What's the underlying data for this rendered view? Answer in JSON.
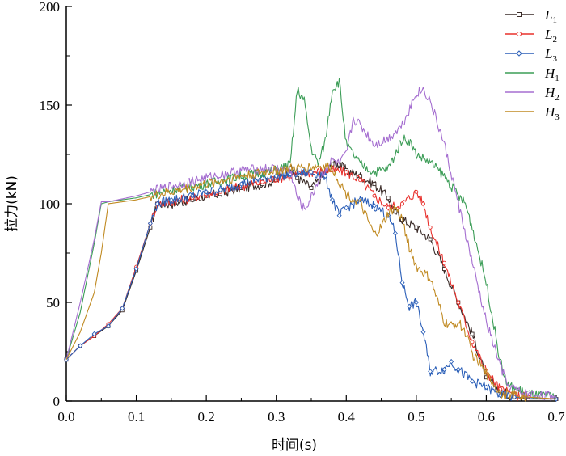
{
  "chart_data": {
    "type": "line",
    "title": "",
    "xlabel": "时间(s)",
    "ylabel": "拉力(kN)",
    "xlim": [
      0.0,
      0.7
    ],
    "ylim": [
      0,
      200
    ],
    "x_ticks": [
      0.0,
      0.1,
      0.2,
      0.3,
      0.4,
      0.5,
      0.6,
      0.7
    ],
    "y_ticks": [
      0,
      50,
      100,
      150,
      200
    ],
    "x_tick_labels": [
      "0.0",
      "0.1",
      "0.2",
      "0.3",
      "0.4",
      "0.5",
      "0.6",
      "0.7"
    ],
    "y_tick_labels": [
      "0",
      "50",
      "100",
      "150",
      "200"
    ],
    "grid": false,
    "legend_position": "top-right",
    "series": [
      {
        "name": "L1",
        "label_main": "L",
        "label_sub": "1",
        "color": "#3a2b28",
        "marker": "square",
        "points": [
          [
            0.0,
            21
          ],
          [
            0.02,
            28
          ],
          [
            0.04,
            33
          ],
          [
            0.06,
            38
          ],
          [
            0.08,
            46
          ],
          [
            0.1,
            66
          ],
          [
            0.12,
            88
          ],
          [
            0.13,
            100
          ],
          [
            0.15,
            100
          ],
          [
            0.18,
            102
          ],
          [
            0.2,
            104
          ],
          [
            0.22,
            105
          ],
          [
            0.25,
            108
          ],
          [
            0.28,
            110
          ],
          [
            0.3,
            112
          ],
          [
            0.32,
            118
          ],
          [
            0.33,
            113
          ],
          [
            0.35,
            108
          ],
          [
            0.37,
            115
          ],
          [
            0.38,
            120
          ],
          [
            0.39,
            120
          ],
          [
            0.4,
            117
          ],
          [
            0.42,
            114
          ],
          [
            0.44,
            110
          ],
          [
            0.46,
            103
          ],
          [
            0.47,
            96
          ],
          [
            0.48,
            92
          ],
          [
            0.5,
            88
          ],
          [
            0.52,
            82
          ],
          [
            0.54,
            67
          ],
          [
            0.56,
            50
          ],
          [
            0.58,
            34
          ],
          [
            0.6,
            12
          ],
          [
            0.62,
            5
          ],
          [
            0.64,
            2
          ],
          [
            0.66,
            1
          ],
          [
            0.7,
            1
          ]
        ]
      },
      {
        "name": "L2",
        "label_main": "L",
        "label_sub": "2",
        "color": "#e8302c",
        "marker": "circle",
        "points": [
          [
            0.0,
            21
          ],
          [
            0.02,
            28
          ],
          [
            0.04,
            33
          ],
          [
            0.06,
            39
          ],
          [
            0.08,
            47
          ],
          [
            0.1,
            68
          ],
          [
            0.12,
            90
          ],
          [
            0.13,
            100
          ],
          [
            0.15,
            101
          ],
          [
            0.18,
            103
          ],
          [
            0.2,
            105
          ],
          [
            0.22,
            106
          ],
          [
            0.25,
            109
          ],
          [
            0.28,
            111
          ],
          [
            0.3,
            113
          ],
          [
            0.32,
            114
          ],
          [
            0.35,
            116
          ],
          [
            0.38,
            117
          ],
          [
            0.4,
            116
          ],
          [
            0.42,
            112
          ],
          [
            0.44,
            104
          ],
          [
            0.46,
            98
          ],
          [
            0.48,
            100
          ],
          [
            0.5,
            106
          ],
          [
            0.51,
            100
          ],
          [
            0.52,
            88
          ],
          [
            0.54,
            70
          ],
          [
            0.56,
            50
          ],
          [
            0.58,
            30
          ],
          [
            0.6,
            15
          ],
          [
            0.62,
            6
          ],
          [
            0.64,
            3
          ],
          [
            0.66,
            2
          ],
          [
            0.7,
            1
          ]
        ]
      },
      {
        "name": "L3",
        "label_main": "L",
        "label_sub": "3",
        "color": "#2b5fb8",
        "marker": "diamond",
        "points": [
          [
            0.0,
            21
          ],
          [
            0.02,
            28
          ],
          [
            0.04,
            34
          ],
          [
            0.06,
            38
          ],
          [
            0.08,
            47
          ],
          [
            0.1,
            67
          ],
          [
            0.12,
            90
          ],
          [
            0.13,
            100
          ],
          [
            0.15,
            102
          ],
          [
            0.18,
            104
          ],
          [
            0.2,
            106
          ],
          [
            0.22,
            107
          ],
          [
            0.25,
            110
          ],
          [
            0.28,
            113
          ],
          [
            0.3,
            114
          ],
          [
            0.32,
            115
          ],
          [
            0.35,
            116
          ],
          [
            0.37,
            114
          ],
          [
            0.38,
            102
          ],
          [
            0.39,
            94
          ],
          [
            0.4,
            98
          ],
          [
            0.42,
            102
          ],
          [
            0.44,
            99
          ],
          [
            0.46,
            94
          ],
          [
            0.47,
            85
          ],
          [
            0.48,
            60
          ],
          [
            0.49,
            48
          ],
          [
            0.5,
            50
          ],
          [
            0.51,
            35
          ],
          [
            0.52,
            15
          ],
          [
            0.54,
            16
          ],
          [
            0.55,
            20
          ],
          [
            0.56,
            16
          ],
          [
            0.58,
            10
          ],
          [
            0.6,
            7
          ],
          [
            0.62,
            3
          ],
          [
            0.64,
            2
          ],
          [
            0.7,
            1
          ]
        ]
      },
      {
        "name": "H1",
        "label_main": "H",
        "label_sub": "1",
        "color": "#3c9d57",
        "marker": "none",
        "points": [
          [
            0.0,
            21
          ],
          [
            0.02,
            45
          ],
          [
            0.04,
            80
          ],
          [
            0.05,
            100
          ],
          [
            0.06,
            101
          ],
          [
            0.1,
            103
          ],
          [
            0.15,
            107
          ],
          [
            0.2,
            110
          ],
          [
            0.25,
            114
          ],
          [
            0.3,
            117
          ],
          [
            0.32,
            120
          ],
          [
            0.33,
            158
          ],
          [
            0.34,
            152
          ],
          [
            0.35,
            128
          ],
          [
            0.36,
            120
          ],
          [
            0.37,
            132
          ],
          [
            0.38,
            158
          ],
          [
            0.39,
            162
          ],
          [
            0.4,
            130
          ],
          [
            0.42,
            120
          ],
          [
            0.44,
            116
          ],
          [
            0.46,
            118
          ],
          [
            0.47,
            125
          ],
          [
            0.48,
            133
          ],
          [
            0.49,
            132
          ],
          [
            0.5,
            125
          ],
          [
            0.52,
            121
          ],
          [
            0.54,
            114
          ],
          [
            0.56,
            104
          ],
          [
            0.57,
            100
          ],
          [
            0.58,
            88
          ],
          [
            0.6,
            60
          ],
          [
            0.62,
            20
          ],
          [
            0.63,
            8
          ],
          [
            0.65,
            5
          ],
          [
            0.67,
            3
          ],
          [
            0.7,
            2
          ]
        ]
      },
      {
        "name": "H2",
        "label_main": "H",
        "label_sub": "2",
        "color": "#a56ed0",
        "marker": "none",
        "points": [
          [
            0.0,
            21
          ],
          [
            0.02,
            50
          ],
          [
            0.04,
            82
          ],
          [
            0.05,
            101
          ],
          [
            0.06,
            101
          ],
          [
            0.1,
            104
          ],
          [
            0.15,
            109
          ],
          [
            0.2,
            113
          ],
          [
            0.25,
            117
          ],
          [
            0.3,
            118
          ],
          [
            0.32,
            117
          ],
          [
            0.33,
            103
          ],
          [
            0.34,
            97
          ],
          [
            0.35,
            103
          ],
          [
            0.36,
            112
          ],
          [
            0.38,
            122
          ],
          [
            0.39,
            120
          ],
          [
            0.4,
            125
          ],
          [
            0.41,
            143
          ],
          [
            0.42,
            140
          ],
          [
            0.44,
            130
          ],
          [
            0.46,
            133
          ],
          [
            0.48,
            140
          ],
          [
            0.5,
            156
          ],
          [
            0.51,
            158
          ],
          [
            0.52,
            152
          ],
          [
            0.54,
            130
          ],
          [
            0.56,
            100
          ],
          [
            0.58,
            70
          ],
          [
            0.6,
            40
          ],
          [
            0.62,
            18
          ],
          [
            0.63,
            8
          ],
          [
            0.65,
            4
          ],
          [
            0.7,
            2
          ]
        ]
      },
      {
        "name": "H3",
        "label_main": "H",
        "label_sub": "3",
        "color": "#c08a22",
        "marker": "none",
        "points": [
          [
            0.0,
            21
          ],
          [
            0.02,
            35
          ],
          [
            0.04,
            55
          ],
          [
            0.05,
            75
          ],
          [
            0.06,
            100
          ],
          [
            0.1,
            102
          ],
          [
            0.15,
            106
          ],
          [
            0.2,
            110
          ],
          [
            0.25,
            114
          ],
          [
            0.3,
            117
          ],
          [
            0.33,
            118
          ],
          [
            0.36,
            119
          ],
          [
            0.38,
            118
          ],
          [
            0.39,
            111
          ],
          [
            0.4,
            105
          ],
          [
            0.42,
            100
          ],
          [
            0.44,
            84
          ],
          [
            0.45,
            88
          ],
          [
            0.46,
            95
          ],
          [
            0.47,
            98
          ],
          [
            0.48,
            92
          ],
          [
            0.49,
            78
          ],
          [
            0.5,
            68
          ],
          [
            0.52,
            62
          ],
          [
            0.54,
            40
          ],
          [
            0.55,
            38
          ],
          [
            0.56,
            40
          ],
          [
            0.57,
            35
          ],
          [
            0.58,
            24
          ],
          [
            0.6,
            14
          ],
          [
            0.62,
            4
          ],
          [
            0.64,
            3
          ],
          [
            0.66,
            2
          ],
          [
            0.7,
            1
          ]
        ]
      }
    ]
  }
}
